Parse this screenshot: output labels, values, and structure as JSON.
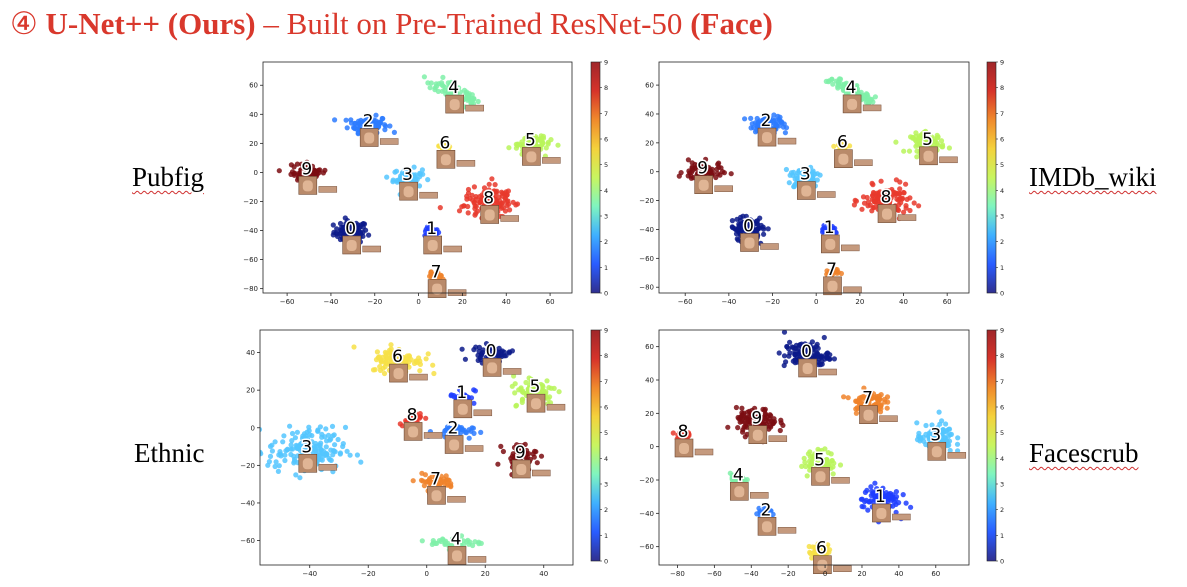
{
  "title": {
    "circled": "④",
    "bold_part": "U-Net++ (Ours)",
    "mid": " – Built on Pre-Trained ResNet-50 ",
    "bold_suffix": "(Face)"
  },
  "labels": {
    "top_left": "Pubfig",
    "top_right": "IMDb_wiki",
    "bottom_left": "Ethnic",
    "bottom_right": "Facescrub"
  },
  "colors": [
    "#0c1a8a",
    "#1f3dff",
    "#2d7bff",
    "#53c6ff",
    "#7ff0a8",
    "#b9f55a",
    "#f7e046",
    "#f0832a",
    "#e8382c",
    "#7b0d12"
  ],
  "chart_data": [
    {
      "type": "scatter",
      "name": "Pubfig",
      "xlim": [
        -71,
        70
      ],
      "ylim": [
        -83,
        76
      ],
      "xticks": [
        -60,
        -40,
        -20,
        0,
        20,
        40,
        60
      ],
      "yticks": [
        -80,
        -60,
        -40,
        -20,
        0,
        20,
        40,
        60
      ],
      "colorbar": {
        "min": 0,
        "max": 9,
        "ticks": [
          0,
          1,
          2,
          3,
          4,
          5,
          6,
          7,
          8,
          9
        ]
      },
      "clusters": [
        {
          "label": "0",
          "x": -31,
          "y": -41,
          "rx": 7,
          "ry": 7,
          "n": 90
        },
        {
          "label": "1",
          "x": 6,
          "y": -41,
          "rx": 3,
          "ry": 3,
          "n": 30
        },
        {
          "label": "2",
          "x": -23,
          "y": 33,
          "rx": 8,
          "ry": 5,
          "n": 90
        },
        {
          "label": "3",
          "x": -5,
          "y": -4,
          "rx": 6,
          "ry": 6,
          "n": 70
        },
        {
          "label": "4",
          "x": 16,
          "y": 56,
          "rx": 10,
          "ry": 8,
          "n": 70,
          "shape": "arc"
        },
        {
          "label": "5",
          "x": 51,
          "y": 20,
          "rx": 7,
          "ry": 6,
          "n": 80
        },
        {
          "label": "6",
          "x": 12,
          "y": 18,
          "rx": 3,
          "ry": 3,
          "n": 20
        },
        {
          "label": "7",
          "x": 8,
          "y": -71,
          "rx": 3,
          "ry": 3,
          "n": 20
        },
        {
          "label": "8",
          "x": 32,
          "y": -20,
          "rx": 10,
          "ry": 9,
          "n": 120
        },
        {
          "label": "9",
          "x": -51,
          "y": 0,
          "rx": 8,
          "ry": 6,
          "n": 80
        }
      ]
    },
    {
      "type": "scatter",
      "name": "IMDb_wiki",
      "xlim": [
        -72,
        70
      ],
      "ylim": [
        -84,
        76
      ],
      "xticks": [
        -60,
        -40,
        -20,
        0,
        20,
        40,
        60
      ],
      "yticks": [
        -80,
        -60,
        -40,
        -20,
        0,
        20,
        40,
        60
      ],
      "colorbar": {
        "min": 0,
        "max": 9,
        "ticks": [
          0,
          1,
          2,
          3,
          4,
          5,
          6,
          7,
          8,
          9
        ]
      },
      "clusters": [
        {
          "label": "0",
          "x": -31,
          "y": -40,
          "rx": 7,
          "ry": 7,
          "n": 90
        },
        {
          "label": "1",
          "x": 6,
          "y": -41,
          "rx": 3,
          "ry": 3,
          "n": 30
        },
        {
          "label": "2",
          "x": -23,
          "y": 33,
          "rx": 8,
          "ry": 5,
          "n": 90
        },
        {
          "label": "3",
          "x": -5,
          "y": -4,
          "rx": 6,
          "ry": 6,
          "n": 70
        },
        {
          "label": "4",
          "x": 16,
          "y": 56,
          "rx": 10,
          "ry": 8,
          "n": 70,
          "shape": "arc"
        },
        {
          "label": "5",
          "x": 51,
          "y": 20,
          "rx": 7,
          "ry": 6,
          "n": 80
        },
        {
          "label": "6",
          "x": 12,
          "y": 18,
          "rx": 3,
          "ry": 3,
          "n": 20
        },
        {
          "label": "7",
          "x": 7,
          "y": -70,
          "rx": 3,
          "ry": 3,
          "n": 20
        },
        {
          "label": "8",
          "x": 32,
          "y": -20,
          "rx": 10,
          "ry": 9,
          "n": 120
        },
        {
          "label": "9",
          "x": -52,
          "y": 0,
          "rx": 8,
          "ry": 6,
          "n": 80
        }
      ]
    },
    {
      "type": "scatter",
      "name": "Ethnic",
      "xlim": [
        -57,
        50
      ],
      "ylim": [
        -73,
        52
      ],
      "xticks": [
        -40,
        -20,
        0,
        20,
        40
      ],
      "yticks": [
        -60,
        -40,
        -20,
        0,
        20,
        40
      ],
      "colorbar": {
        "min": 0,
        "max": 9,
        "ticks": [
          0,
          1,
          2,
          3,
          4,
          5,
          6,
          7,
          8,
          9
        ]
      },
      "clusters": [
        {
          "label": "0",
          "x": 22,
          "y": 39,
          "rx": 6,
          "ry": 4,
          "n": 60
        },
        {
          "label": "1",
          "x": 12,
          "y": 17,
          "rx": 4,
          "ry": 4,
          "n": 30
        },
        {
          "label": "2",
          "x": 9,
          "y": -2,
          "rx": 6,
          "ry": 3,
          "n": 40
        },
        {
          "label": "3",
          "x": -41,
          "y": -12,
          "rx": 12,
          "ry": 11,
          "n": 160
        },
        {
          "label": "4",
          "x": 10,
          "y": -61,
          "rx": 8,
          "ry": 3,
          "n": 40
        },
        {
          "label": "5",
          "x": 37,
          "y": 20,
          "rx": 7,
          "ry": 7,
          "n": 80
        },
        {
          "label": "6",
          "x": -10,
          "y": 36,
          "rx": 8,
          "ry": 6,
          "n": 90
        },
        {
          "label": "7",
          "x": 3,
          "y": -29,
          "rx": 6,
          "ry": 4,
          "n": 50
        },
        {
          "label": "8",
          "x": -5,
          "y": 5,
          "rx": 4,
          "ry": 3,
          "n": 30
        },
        {
          "label": "9",
          "x": 32,
          "y": -15,
          "rx": 5,
          "ry": 6,
          "n": 50
        }
      ]
    },
    {
      "type": "scatter",
      "name": "Facescrub",
      "xlim": [
        -90,
        78
      ],
      "ylim": [
        -71,
        70
      ],
      "xticks": [
        -80,
        -60,
        -40,
        -20,
        0,
        20,
        40,
        60
      ],
      "yticks": [
        -60,
        -40,
        -20,
        0,
        20,
        40,
        60
      ],
      "colorbar": {
        "min": 0,
        "max": 9,
        "ticks": [
          0,
          1,
          2,
          3,
          4,
          5,
          6,
          7,
          8,
          9
        ]
      },
      "clusters": [
        {
          "label": "0",
          "x": -10,
          "y": 55,
          "rx": 11,
          "ry": 7,
          "n": 120
        },
        {
          "label": "1",
          "x": 30,
          "y": -32,
          "rx": 9,
          "ry": 8,
          "n": 100
        },
        {
          "label": "2",
          "x": -32,
          "y": -40,
          "rx": 4,
          "ry": 4,
          "n": 30
        },
        {
          "label": "3",
          "x": 60,
          "y": 5,
          "rx": 9,
          "ry": 8,
          "n": 100
        },
        {
          "label": "4",
          "x": -47,
          "y": -19,
          "rx": 4,
          "ry": 3,
          "n": 30
        },
        {
          "label": "5",
          "x": -3,
          "y": -10,
          "rx": 8,
          "ry": 7,
          "n": 90
        },
        {
          "label": "6",
          "x": -2,
          "y": -63,
          "rx": 6,
          "ry": 4,
          "n": 50
        },
        {
          "label": "7",
          "x": 23,
          "y": 27,
          "rx": 8,
          "ry": 6,
          "n": 80
        },
        {
          "label": "8",
          "x": -77,
          "y": 7,
          "rx": 4,
          "ry": 4,
          "n": 30
        },
        {
          "label": "9",
          "x": -37,
          "y": 15,
          "rx": 10,
          "ry": 7,
          "n": 110
        }
      ]
    }
  ]
}
